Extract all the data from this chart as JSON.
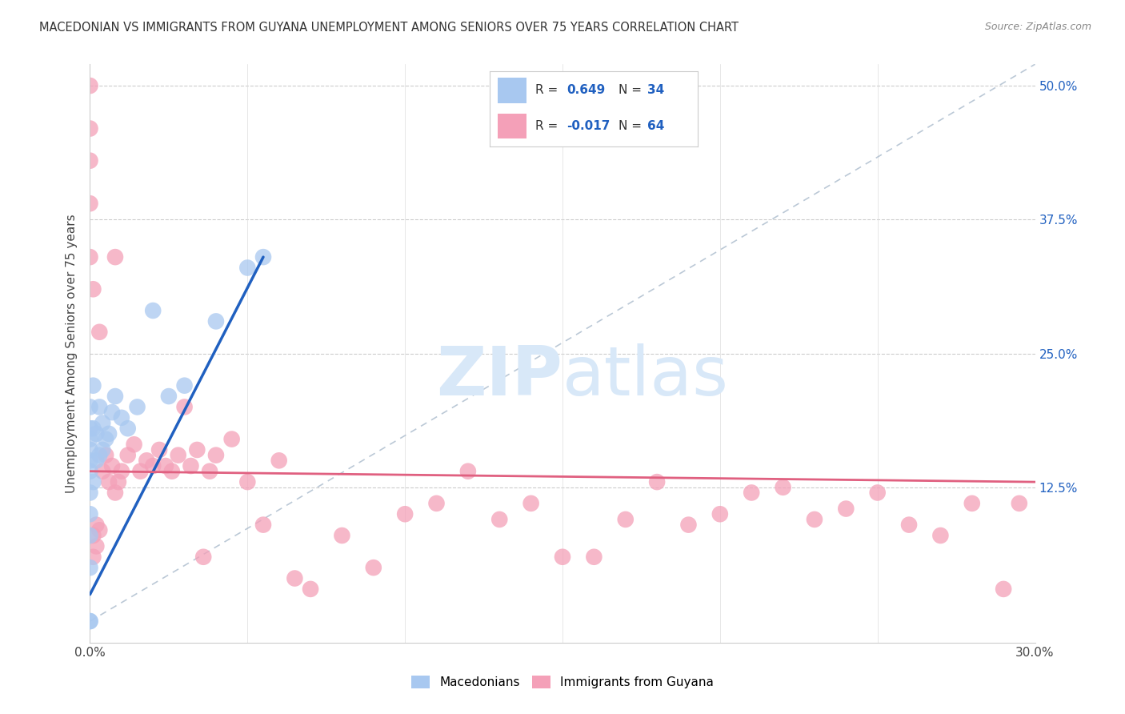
{
  "title": "MACEDONIAN VS IMMIGRANTS FROM GUYANA UNEMPLOYMENT AMONG SENIORS OVER 75 YEARS CORRELATION CHART",
  "source": "Source: ZipAtlas.com",
  "ylabel": "Unemployment Among Seniors over 75 years",
  "xlim": [
    0.0,
    0.3
  ],
  "ylim": [
    -0.02,
    0.52
  ],
  "yticks": [
    0.0,
    0.125,
    0.25,
    0.375,
    0.5
  ],
  "ytick_labels": [
    "",
    "12.5%",
    "25.0%",
    "37.5%",
    "50.0%"
  ],
  "xtick_positions": [
    0.0,
    0.05,
    0.1,
    0.15,
    0.2,
    0.25,
    0.3
  ],
  "legend_r_blue": "0.649",
  "legend_n_blue": "34",
  "legend_r_pink": "-0.017",
  "legend_n_pink": "64",
  "blue_color": "#A8C8F0",
  "pink_color": "#F4A0B8",
  "blue_line_color": "#2060C0",
  "pink_line_color": "#E06080",
  "watermark_color": "#D8E8F8",
  "mac_x": [
    0.0,
    0.0,
    0.0,
    0.0,
    0.0,
    0.0,
    0.0,
    0.0,
    0.0,
    0.0,
    0.0,
    0.0,
    0.001,
    0.001,
    0.001,
    0.002,
    0.002,
    0.003,
    0.003,
    0.004,
    0.004,
    0.005,
    0.006,
    0.007,
    0.008,
    0.01,
    0.012,
    0.015,
    0.02,
    0.025,
    0.03,
    0.04,
    0.05,
    0.055
  ],
  "mac_y": [
    0.0,
    0.0,
    0.05,
    0.08,
    0.1,
    0.12,
    0.14,
    0.15,
    0.16,
    0.17,
    0.18,
    0.2,
    0.13,
    0.18,
    0.22,
    0.15,
    0.175,
    0.155,
    0.2,
    0.16,
    0.185,
    0.17,
    0.175,
    0.195,
    0.21,
    0.19,
    0.18,
    0.2,
    0.29,
    0.21,
    0.22,
    0.28,
    0.33,
    0.34
  ],
  "guy_x": [
    0.0,
    0.0,
    0.0,
    0.0,
    0.001,
    0.001,
    0.002,
    0.002,
    0.003,
    0.004,
    0.005,
    0.006,
    0.007,
    0.008,
    0.009,
    0.01,
    0.012,
    0.014,
    0.016,
    0.018,
    0.02,
    0.022,
    0.024,
    0.026,
    0.028,
    0.03,
    0.032,
    0.034,
    0.036,
    0.038,
    0.04,
    0.045,
    0.05,
    0.055,
    0.06,
    0.065,
    0.07,
    0.08,
    0.09,
    0.1,
    0.11,
    0.12,
    0.13,
    0.14,
    0.15,
    0.16,
    0.17,
    0.18,
    0.19,
    0.2,
    0.21,
    0.22,
    0.23,
    0.24,
    0.25,
    0.26,
    0.27,
    0.28,
    0.29,
    0.295,
    0.0,
    0.001,
    0.003,
    0.008
  ],
  "guy_y": [
    0.5,
    0.43,
    0.39,
    0.34,
    0.06,
    0.08,
    0.07,
    0.09,
    0.085,
    0.14,
    0.155,
    0.13,
    0.145,
    0.12,
    0.13,
    0.14,
    0.155,
    0.165,
    0.14,
    0.15,
    0.145,
    0.16,
    0.145,
    0.14,
    0.155,
    0.2,
    0.145,
    0.16,
    0.06,
    0.14,
    0.155,
    0.17,
    0.13,
    0.09,
    0.15,
    0.04,
    0.03,
    0.08,
    0.05,
    0.1,
    0.11,
    0.14,
    0.095,
    0.11,
    0.06,
    0.06,
    0.095,
    0.13,
    0.09,
    0.1,
    0.12,
    0.125,
    0.095,
    0.105,
    0.12,
    0.09,
    0.08,
    0.11,
    0.03,
    0.11,
    0.46,
    0.31,
    0.27,
    0.34
  ]
}
